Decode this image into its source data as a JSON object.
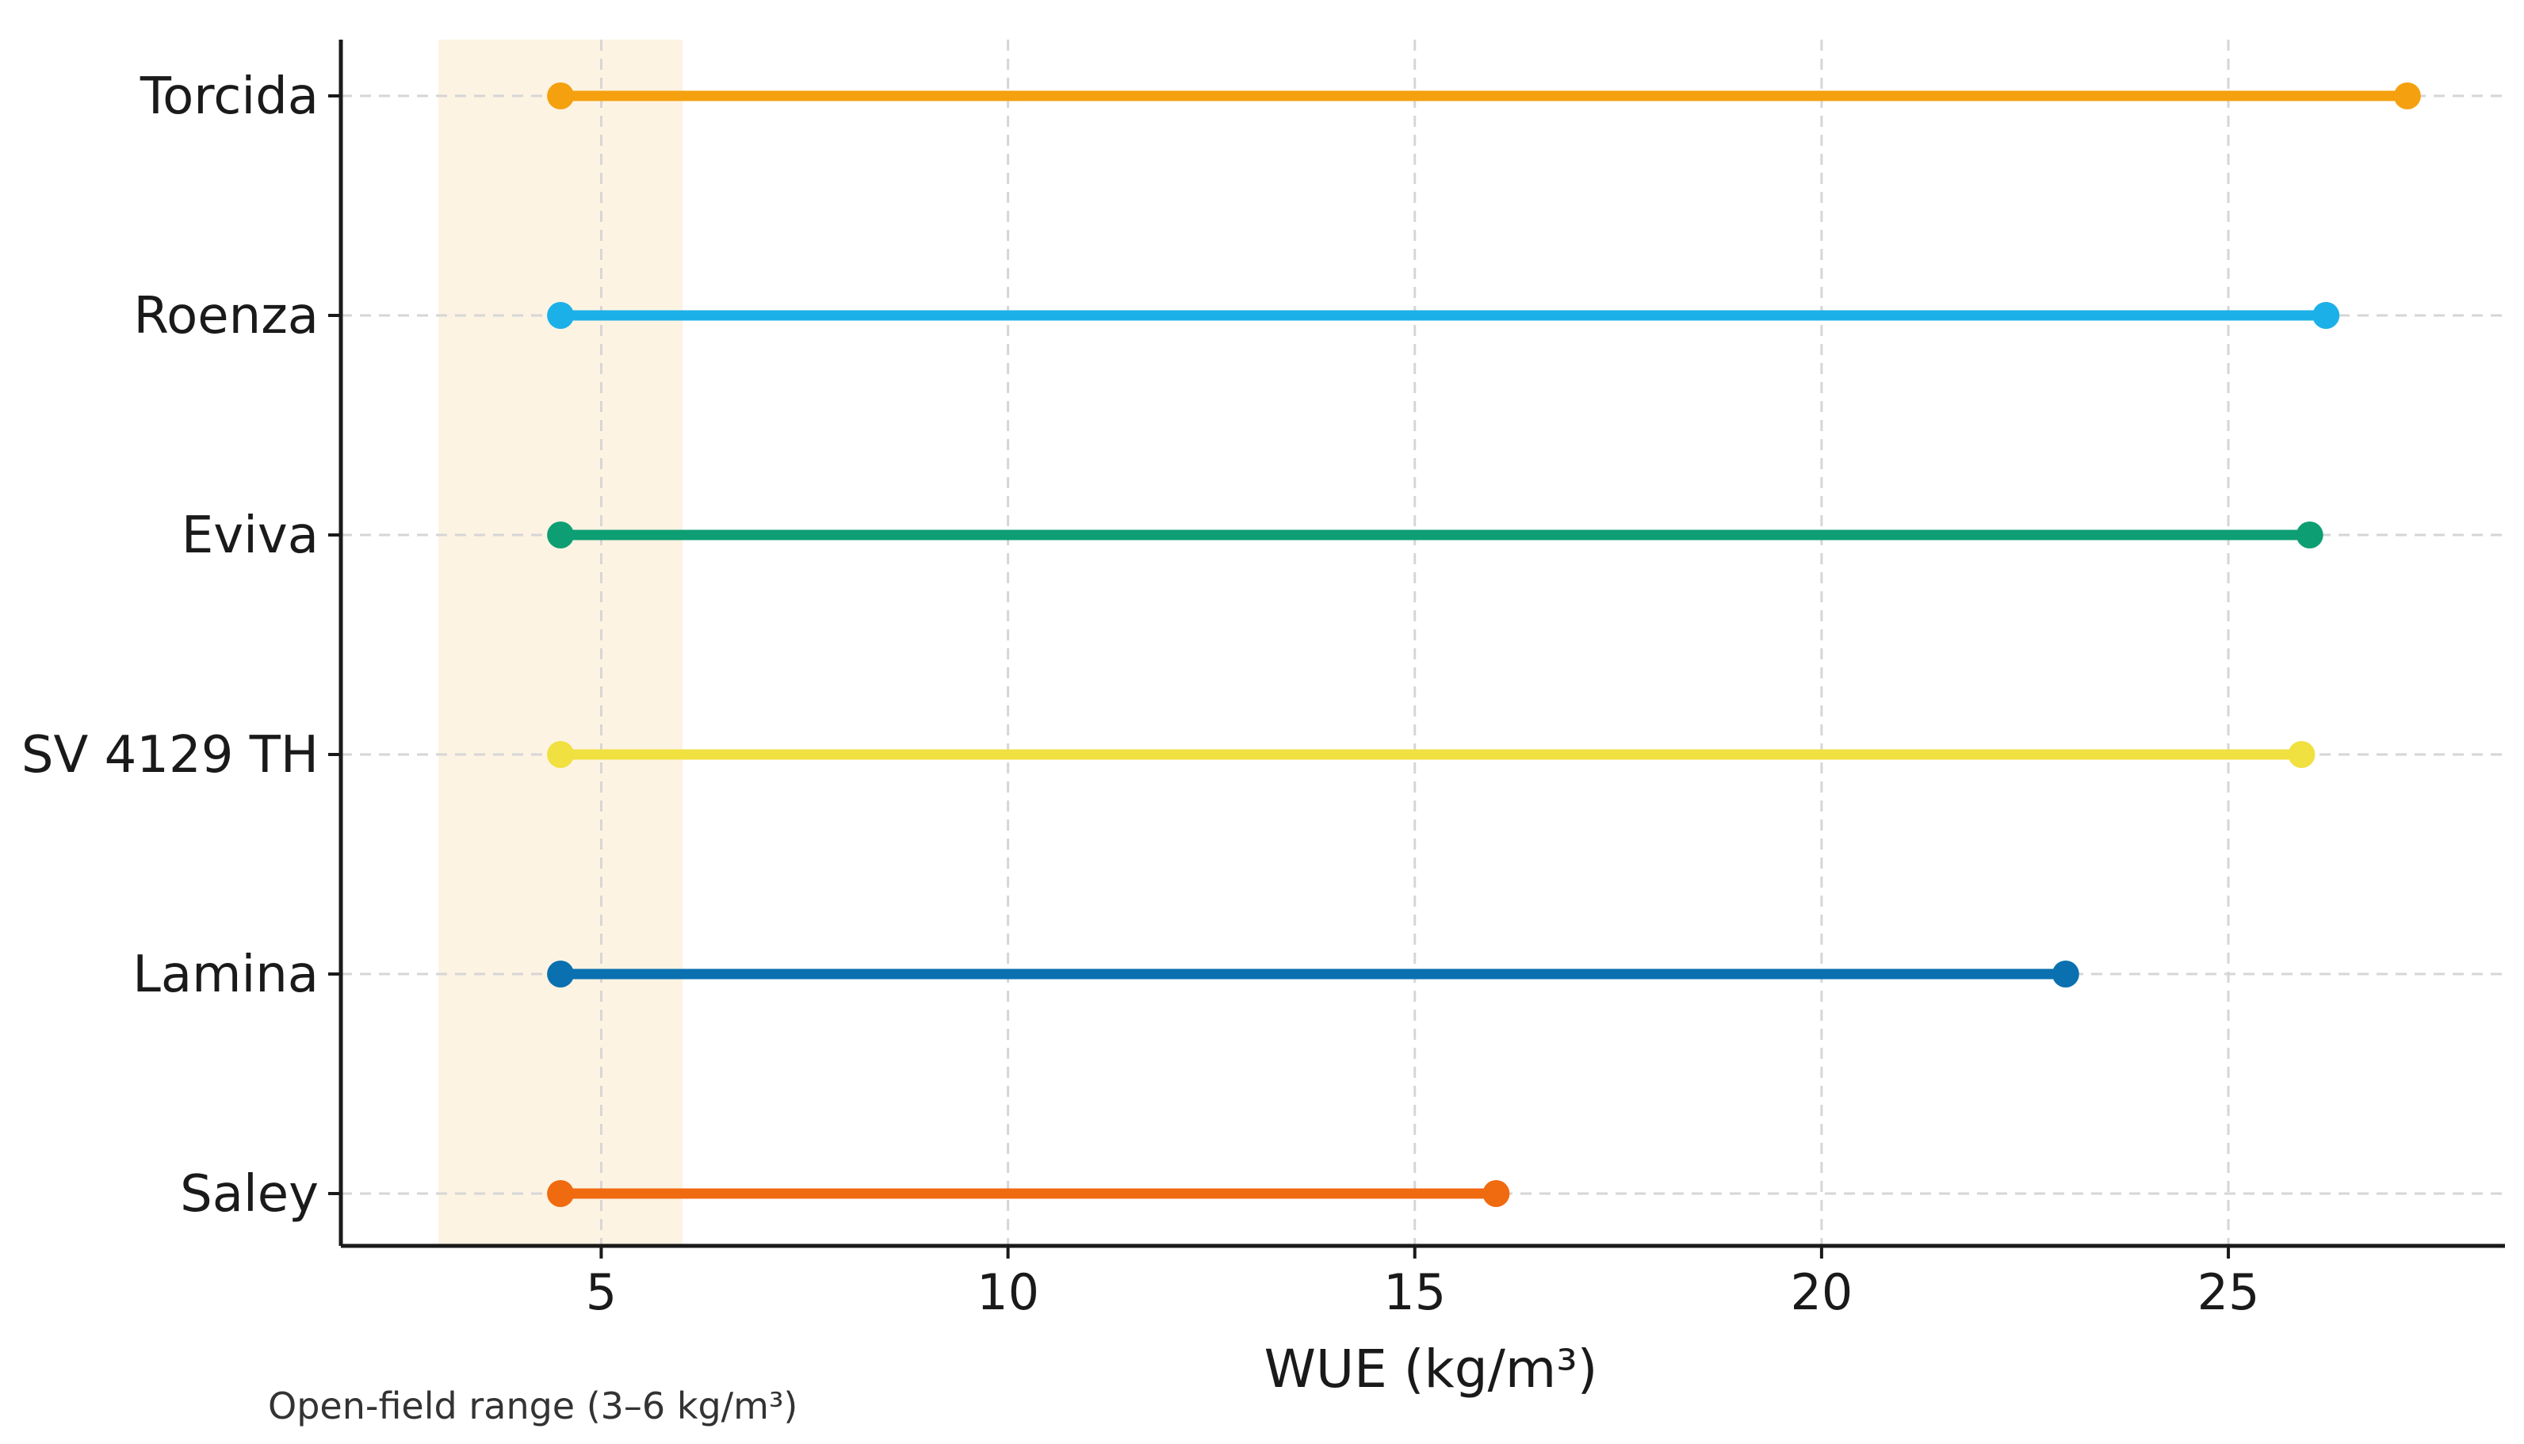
{
  "chart_data": {
    "type": "dumbbell",
    "categories": [
      "Torcida",
      "Roenza",
      "Eviva",
      "SV 4129 TH",
      "Lamina",
      "Saley"
    ],
    "series": [
      {
        "category": "Torcida",
        "low": 4.5,
        "high": 27.2,
        "color": "#F5A00F"
      },
      {
        "category": "Roenza",
        "low": 4.5,
        "high": 26.2,
        "color": "#1CB0E8"
      },
      {
        "category": "Eviva",
        "low": 4.5,
        "high": 26.0,
        "color": "#0E9E73"
      },
      {
        "category": "SV 4129 TH",
        "low": 4.5,
        "high": 25.9,
        "color": "#F0E040"
      },
      {
        "category": "Lamina",
        "low": 4.5,
        "high": 23.0,
        "color": "#0A70B0"
      },
      {
        "category": "Saley",
        "low": 4.5,
        "high": 16.0,
        "color": "#F06A10"
      }
    ],
    "xlabel": "WUE (kg/m³)",
    "ylabel": "",
    "title": "",
    "xlim": [
      1.8,
      28.4
    ],
    "xticks": [
      5,
      10,
      15,
      20,
      25
    ],
    "tick_labels": [
      "5",
      "10",
      "15",
      "20",
      "25"
    ],
    "highlight_band": {
      "from": 3,
      "to": 6,
      "color": "#FDF3E3"
    },
    "note": "Open-field range (3–6 kg/m³)",
    "grid": true
  }
}
